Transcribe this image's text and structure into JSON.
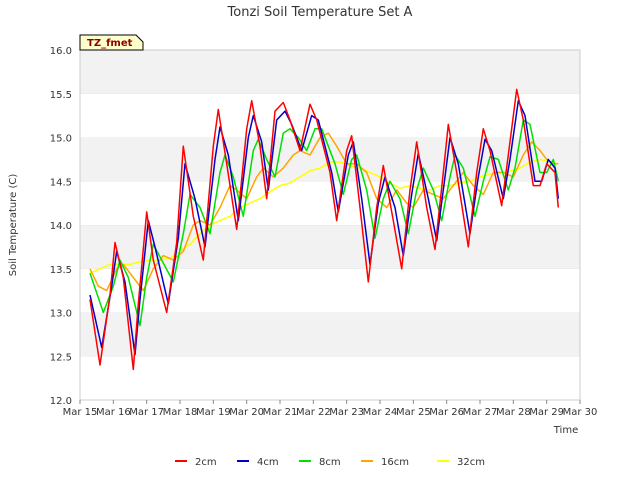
{
  "chart_data": {
    "type": "line",
    "title": "Tonzi Soil Temperature Set A",
    "xlabel": "Time",
    "ylabel": "Soil Temperature (C)",
    "ylim": [
      12.0,
      16.0
    ],
    "xlim": [
      0,
      15
    ],
    "yticks": [
      "12.0",
      "12.5",
      "13.0",
      "13.5",
      "14.0",
      "14.5",
      "15.0",
      "15.5",
      "16.0"
    ],
    "xticks": [
      "Mar 15",
      "Mar 16",
      "Mar 17",
      "Mar 18",
      "Mar 19",
      "Mar 20",
      "Mar 21",
      "Mar 22",
      "Mar 23",
      "Mar 24",
      "Mar 25",
      "Mar 26",
      "Mar 27",
      "Mar 28",
      "Mar 29",
      "Mar 30"
    ],
    "grid": "horizontal bands",
    "legend_position": "bottom",
    "tag_label": "TZ_fmet",
    "x_unit": "days since Mar 15",
    "series": [
      {
        "name": "2cm",
        "color": "#ff0000",
        "points": [
          [
            0.3,
            13.15
          ],
          [
            0.6,
            12.4
          ],
          [
            0.9,
            13.2
          ],
          [
            1.05,
            13.8
          ],
          [
            1.3,
            13.4
          ],
          [
            1.6,
            12.35
          ],
          [
            1.75,
            13.1
          ],
          [
            2.0,
            14.15
          ],
          [
            2.2,
            13.6
          ],
          [
            2.6,
            13.0
          ],
          [
            2.9,
            13.8
          ],
          [
            3.1,
            14.9
          ],
          [
            3.4,
            14.1
          ],
          [
            3.7,
            13.6
          ],
          [
            4.0,
            14.9
          ],
          [
            4.15,
            15.32
          ],
          [
            4.4,
            14.7
          ],
          [
            4.7,
            13.95
          ],
          [
            5.0,
            15.1
          ],
          [
            5.15,
            15.42
          ],
          [
            5.4,
            14.9
          ],
          [
            5.6,
            14.3
          ],
          [
            5.85,
            15.3
          ],
          [
            6.1,
            15.4
          ],
          [
            6.3,
            15.2
          ],
          [
            6.6,
            14.85
          ],
          [
            6.9,
            15.38
          ],
          [
            7.1,
            15.2
          ],
          [
            7.5,
            14.6
          ],
          [
            7.7,
            14.05
          ],
          [
            8.0,
            14.85
          ],
          [
            8.15,
            15.02
          ],
          [
            8.4,
            14.2
          ],
          [
            8.65,
            13.35
          ],
          [
            8.9,
            14.2
          ],
          [
            9.1,
            14.68
          ],
          [
            9.4,
            14.05
          ],
          [
            9.65,
            13.5
          ],
          [
            9.9,
            14.4
          ],
          [
            10.1,
            14.95
          ],
          [
            10.4,
            14.2
          ],
          [
            10.65,
            13.72
          ],
          [
            10.9,
            14.6
          ],
          [
            11.05,
            15.15
          ],
          [
            11.3,
            14.6
          ],
          [
            11.65,
            13.75
          ],
          [
            11.9,
            14.6
          ],
          [
            12.1,
            15.1
          ],
          [
            12.3,
            14.85
          ],
          [
            12.65,
            14.22
          ],
          [
            12.85,
            14.8
          ],
          [
            13.1,
            15.55
          ],
          [
            13.3,
            15.2
          ],
          [
            13.6,
            14.45
          ],
          [
            13.8,
            14.45
          ],
          [
            14.0,
            14.7
          ],
          [
            14.25,
            14.6
          ],
          [
            14.35,
            14.2
          ]
        ]
      },
      {
        "name": "4cm",
        "color": "#0000cc",
        "points": [
          [
            0.3,
            13.2
          ],
          [
            0.65,
            12.6
          ],
          [
            0.95,
            13.3
          ],
          [
            1.1,
            13.7
          ],
          [
            1.35,
            13.35
          ],
          [
            1.65,
            12.52
          ],
          [
            1.8,
            13.15
          ],
          [
            2.05,
            14.05
          ],
          [
            2.25,
            13.75
          ],
          [
            2.65,
            13.1
          ],
          [
            2.95,
            13.85
          ],
          [
            3.15,
            14.7
          ],
          [
            3.45,
            14.3
          ],
          [
            3.75,
            13.75
          ],
          [
            4.05,
            14.75
          ],
          [
            4.2,
            15.12
          ],
          [
            4.45,
            14.8
          ],
          [
            4.75,
            14.05
          ],
          [
            5.05,
            15.0
          ],
          [
            5.2,
            15.25
          ],
          [
            5.45,
            14.95
          ],
          [
            5.65,
            14.4
          ],
          [
            5.9,
            15.2
          ],
          [
            6.15,
            15.3
          ],
          [
            6.35,
            15.15
          ],
          [
            6.65,
            14.85
          ],
          [
            6.95,
            15.25
          ],
          [
            7.15,
            15.2
          ],
          [
            7.55,
            14.6
          ],
          [
            7.75,
            14.15
          ],
          [
            8.05,
            14.8
          ],
          [
            8.2,
            14.95
          ],
          [
            8.45,
            14.3
          ],
          [
            8.7,
            13.55
          ],
          [
            8.95,
            14.25
          ],
          [
            9.15,
            14.55
          ],
          [
            9.45,
            14.2
          ],
          [
            9.7,
            13.65
          ],
          [
            9.95,
            14.35
          ],
          [
            10.15,
            14.82
          ],
          [
            10.45,
            14.3
          ],
          [
            10.7,
            13.82
          ],
          [
            10.95,
            14.55
          ],
          [
            11.1,
            15.0
          ],
          [
            11.35,
            14.7
          ],
          [
            11.7,
            13.9
          ],
          [
            11.95,
            14.55
          ],
          [
            12.15,
            14.98
          ],
          [
            12.35,
            14.85
          ],
          [
            12.7,
            14.3
          ],
          [
            12.9,
            14.75
          ],
          [
            13.15,
            15.42
          ],
          [
            13.35,
            15.25
          ],
          [
            13.65,
            14.5
          ],
          [
            13.85,
            14.5
          ],
          [
            14.05,
            14.75
          ],
          [
            14.25,
            14.65
          ],
          [
            14.35,
            14.3
          ]
        ]
      },
      {
        "name": "8cm",
        "color": "#00e000",
        "points": [
          [
            0.3,
            13.45
          ],
          [
            0.7,
            13.0
          ],
          [
            1.0,
            13.3
          ],
          [
            1.2,
            13.6
          ],
          [
            1.45,
            13.4
          ],
          [
            1.8,
            12.85
          ],
          [
            2.0,
            13.4
          ],
          [
            2.2,
            13.78
          ],
          [
            2.45,
            13.6
          ],
          [
            2.8,
            13.35
          ],
          [
            3.1,
            13.9
          ],
          [
            3.3,
            14.35
          ],
          [
            3.6,
            14.2
          ],
          [
            3.9,
            13.9
          ],
          [
            4.2,
            14.6
          ],
          [
            4.35,
            14.8
          ],
          [
            4.6,
            14.55
          ],
          [
            4.9,
            14.1
          ],
          [
            5.2,
            14.85
          ],
          [
            5.35,
            14.98
          ],
          [
            5.6,
            14.75
          ],
          [
            5.85,
            14.55
          ],
          [
            6.1,
            15.05
          ],
          [
            6.3,
            15.1
          ],
          [
            6.55,
            15.0
          ],
          [
            6.8,
            14.85
          ],
          [
            7.05,
            15.1
          ],
          [
            7.25,
            15.1
          ],
          [
            7.65,
            14.7
          ],
          [
            7.9,
            14.35
          ],
          [
            8.15,
            14.75
          ],
          [
            8.3,
            14.8
          ],
          [
            8.6,
            14.4
          ],
          [
            8.85,
            13.85
          ],
          [
            9.1,
            14.3
          ],
          [
            9.3,
            14.5
          ],
          [
            9.6,
            14.3
          ],
          [
            9.85,
            13.9
          ],
          [
            10.1,
            14.4
          ],
          [
            10.3,
            14.65
          ],
          [
            10.6,
            14.4
          ],
          [
            10.85,
            14.05
          ],
          [
            11.1,
            14.55
          ],
          [
            11.25,
            14.8
          ],
          [
            11.5,
            14.65
          ],
          [
            11.85,
            14.1
          ],
          [
            12.1,
            14.5
          ],
          [
            12.3,
            14.78
          ],
          [
            12.55,
            14.75
          ],
          [
            12.85,
            14.4
          ],
          [
            13.05,
            14.65
          ],
          [
            13.3,
            15.2
          ],
          [
            13.5,
            15.15
          ],
          [
            13.8,
            14.6
          ],
          [
            14.0,
            14.6
          ],
          [
            14.2,
            14.75
          ],
          [
            14.35,
            14.5
          ]
        ]
      },
      {
        "name": "16cm",
        "color": "#ffa500",
        "points": [
          [
            0.3,
            13.5
          ],
          [
            0.55,
            13.3
          ],
          [
            0.8,
            13.25
          ],
          [
            1.1,
            13.5
          ],
          [
            1.3,
            13.55
          ],
          [
            1.6,
            13.4
          ],
          [
            1.9,
            13.25
          ],
          [
            2.2,
            13.5
          ],
          [
            2.5,
            13.65
          ],
          [
            2.8,
            13.6
          ],
          [
            3.1,
            13.7
          ],
          [
            3.4,
            14.0
          ],
          [
            3.6,
            14.05
          ],
          [
            3.9,
            14.0
          ],
          [
            4.2,
            14.2
          ],
          [
            4.5,
            14.45
          ],
          [
            4.7,
            14.4
          ],
          [
            5.0,
            14.3
          ],
          [
            5.3,
            14.55
          ],
          [
            5.5,
            14.65
          ],
          [
            5.8,
            14.55
          ],
          [
            6.1,
            14.65
          ],
          [
            6.4,
            14.8
          ],
          [
            6.6,
            14.85
          ],
          [
            6.9,
            14.8
          ],
          [
            7.2,
            15.0
          ],
          [
            7.45,
            15.05
          ],
          [
            7.7,
            14.9
          ],
          [
            8.0,
            14.7
          ],
          [
            8.3,
            14.7
          ],
          [
            8.6,
            14.6
          ],
          [
            8.9,
            14.3
          ],
          [
            9.2,
            14.2
          ],
          [
            9.5,
            14.4
          ],
          [
            9.8,
            14.25
          ],
          [
            10.0,
            14.2
          ],
          [
            10.3,
            14.4
          ],
          [
            10.6,
            14.35
          ],
          [
            10.9,
            14.3
          ],
          [
            11.2,
            14.45
          ],
          [
            11.5,
            14.6
          ],
          [
            11.8,
            14.45
          ],
          [
            12.1,
            14.35
          ],
          [
            12.4,
            14.6
          ],
          [
            12.7,
            14.6
          ],
          [
            13.0,
            14.55
          ],
          [
            13.3,
            14.8
          ],
          [
            13.55,
            14.95
          ],
          [
            13.8,
            14.85
          ],
          [
            14.0,
            14.75
          ],
          [
            14.2,
            14.7
          ],
          [
            14.35,
            14.7
          ]
        ]
      },
      {
        "name": "32cm",
        "color": "#ffff00",
        "points": [
          [
            0.3,
            13.45
          ],
          [
            0.6,
            13.5
          ],
          [
            0.9,
            13.55
          ],
          [
            1.2,
            13.55
          ],
          [
            1.5,
            13.55
          ],
          [
            1.8,
            13.58
          ],
          [
            2.1,
            13.6
          ],
          [
            2.4,
            13.6
          ],
          [
            2.7,
            13.62
          ],
          [
            3.0,
            13.7
          ],
          [
            3.3,
            13.78
          ],
          [
            3.6,
            13.9
          ],
          [
            3.9,
            14.0
          ],
          [
            4.2,
            14.05
          ],
          [
            4.5,
            14.1
          ],
          [
            4.8,
            14.2
          ],
          [
            5.1,
            14.25
          ],
          [
            5.4,
            14.3
          ],
          [
            5.7,
            14.38
          ],
          [
            6.0,
            14.45
          ],
          [
            6.3,
            14.48
          ],
          [
            6.6,
            14.55
          ],
          [
            6.9,
            14.62
          ],
          [
            7.2,
            14.65
          ],
          [
            7.5,
            14.72
          ],
          [
            7.8,
            14.72
          ],
          [
            8.1,
            14.68
          ],
          [
            8.4,
            14.65
          ],
          [
            8.7,
            14.6
          ],
          [
            9.0,
            14.55
          ],
          [
            9.3,
            14.48
          ],
          [
            9.6,
            14.42
          ],
          [
            9.9,
            14.45
          ],
          [
            10.2,
            14.42
          ],
          [
            10.5,
            14.4
          ],
          [
            10.8,
            14.45
          ],
          [
            11.1,
            14.45
          ],
          [
            11.4,
            14.48
          ],
          [
            11.7,
            14.5
          ],
          [
            12.0,
            14.55
          ],
          [
            12.3,
            14.58
          ],
          [
            12.6,
            14.6
          ],
          [
            12.9,
            14.62
          ],
          [
            13.2,
            14.65
          ],
          [
            13.5,
            14.72
          ],
          [
            13.8,
            14.75
          ],
          [
            14.1,
            14.72
          ],
          [
            14.35,
            14.7
          ]
        ]
      }
    ]
  }
}
